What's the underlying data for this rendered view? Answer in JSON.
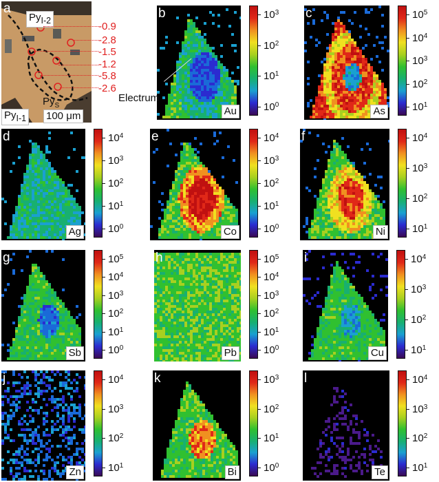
{
  "panel_a": {
    "letter": "a",
    "zone_labels": {
      "py_i2_main": "Py",
      "py_i2_sub": "I-2",
      "py_i1_main": "Py",
      "py_i1_sub": "I-1",
      "py_s_main": "Py",
      "py_s_sub": "S"
    },
    "scale_bar": "100 μm",
    "spot_values": [
      "-0.9",
      "-2.8",
      "-1.5",
      "-1.2",
      "-5.8",
      "-2.6"
    ]
  },
  "panels": [
    {
      "letter": "b",
      "element": "Au",
      "ticks": [
        "10^3",
        "10^2",
        "10^1",
        "10^0"
      ],
      "annotation": "Electrum"
    },
    {
      "letter": "c",
      "element": "As",
      "ticks": [
        "10^5",
        "10^4",
        "10^3",
        "10^2",
        "10^1"
      ]
    },
    {
      "letter": "d",
      "element": "Ag",
      "ticks": [
        "10^4",
        "10^3",
        "10^2",
        "10^1",
        "10^0"
      ]
    },
    {
      "letter": "e",
      "element": "Co",
      "ticks": [
        "10^4",
        "10^3",
        "10^2",
        "10^1",
        "10^0"
      ]
    },
    {
      "letter": "f",
      "element": "Ni",
      "ticks": [
        "10^4",
        "10^3",
        "10^2",
        "10^1"
      ]
    },
    {
      "letter": "g",
      "element": "Sb",
      "ticks": [
        "10^5",
        "10^4",
        "10^3",
        "10^2",
        "10^1",
        "10^0"
      ]
    },
    {
      "letter": "h",
      "element": "Pb",
      "ticks": [
        "10^5",
        "10^4",
        "10^3",
        "10^2",
        "10^1",
        "10^0"
      ]
    },
    {
      "letter": "i",
      "element": "Cu",
      "ticks": [
        "10^4",
        "10^3",
        "10^2",
        "10^1"
      ]
    },
    {
      "letter": "j",
      "element": "Zn",
      "ticks": [
        "10^4",
        "10^3",
        "10^2",
        "10^1"
      ]
    },
    {
      "letter": "k",
      "element": "Bi",
      "ticks": [
        "10^3",
        "10^2",
        "10^1",
        "10^0"
      ]
    },
    {
      "letter": "l",
      "element": "Te",
      "ticks": [
        "10^4",
        "10^3",
        "10^2",
        "10^1"
      ]
    }
  ]
}
